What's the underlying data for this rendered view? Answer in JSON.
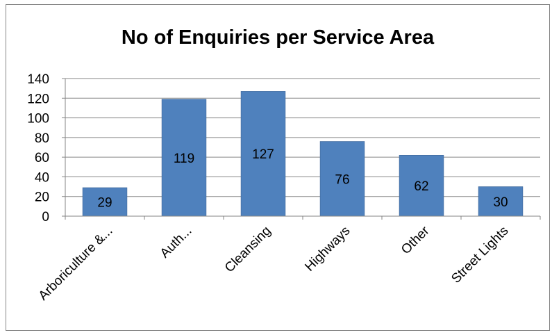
{
  "chart_data": {
    "type": "bar",
    "title": "No of Enquiries per Service Area",
    "xlabel": "",
    "ylabel": "",
    "categories": [
      "Arboriculture &...",
      "Auth...",
      "Cleansing",
      "Highways",
      "Other",
      "Street Lights"
    ],
    "values": [
      29,
      119,
      127,
      76,
      62,
      30
    ],
    "ylim": [
      0,
      140
    ],
    "yticks": [
      0,
      20,
      40,
      60,
      80,
      100,
      120,
      140
    ],
    "grid": true,
    "legend": "none",
    "colors": {
      "bar": "#4f81bd",
      "bar_border": "#3c6596",
      "grid": "#868686",
      "axis": "#868686",
      "text": "#000000"
    }
  }
}
